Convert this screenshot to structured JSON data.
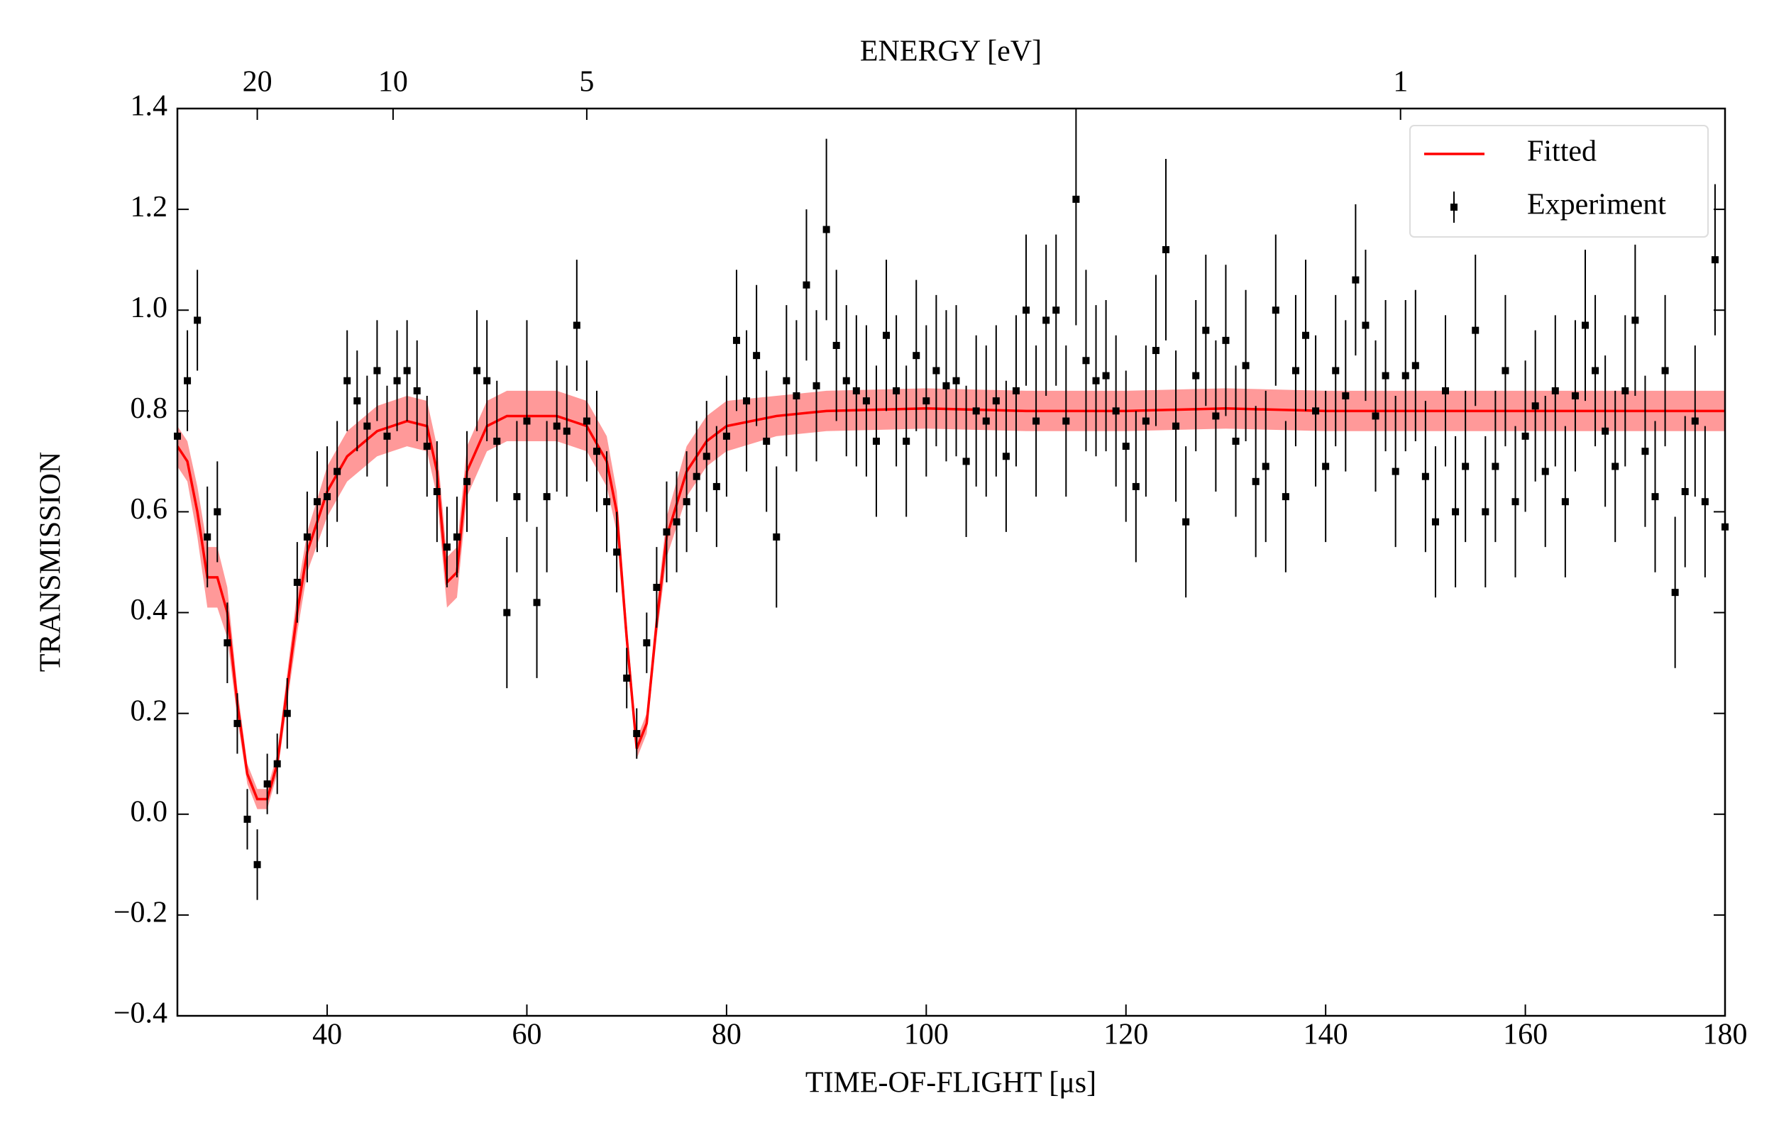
{
  "chart_data": {
    "type": "line",
    "xlabel": "TIME-OF-FLIGHT [μs]",
    "ylabel": "TRANSMISSION",
    "x2label": "ENERGY [eV]",
    "xlim": [
      25,
      180
    ],
    "ylim": [
      -0.4,
      1.4
    ],
    "xticks": [
      40,
      60,
      80,
      100,
      120,
      140,
      160,
      180
    ],
    "yticks": [
      {
        "value": -0.4,
        "label": "−0.4"
      },
      {
        "value": -0.2,
        "label": "−0.2"
      },
      {
        "value": 0,
        "label": "0.0"
      },
      0.2,
      0.4,
      0.6,
      0.8,
      {
        "value": 1,
        "label": "1.0"
      },
      1.2,
      1.4
    ],
    "x2ticks": [
      {
        "value": 33,
        "label": "20"
      },
      {
        "value": 46.6,
        "label": "10"
      },
      {
        "value": 66,
        "label": "5"
      },
      {
        "value": 147.5,
        "label": "1"
      }
    ],
    "legend": "upper right",
    "series": [
      {
        "name": "Fitted",
        "type": "line",
        "color": "#ff0000",
        "x": [
          25,
          26,
          27,
          28,
          29,
          30,
          31,
          32,
          33,
          34,
          35,
          36,
          37,
          38,
          40,
          42,
          45,
          48,
          50,
          51,
          52,
          53,
          54,
          56,
          58,
          60,
          63,
          66,
          68,
          69,
          70,
          71,
          72,
          73,
          74,
          76,
          78,
          80,
          85,
          90,
          100,
          110,
          120,
          130,
          140,
          150,
          160,
          170,
          180
        ],
        "values": [
          0.73,
          0.7,
          0.6,
          0.47,
          0.47,
          0.4,
          0.22,
          0.08,
          0.03,
          0.03,
          0.1,
          0.25,
          0.4,
          0.52,
          0.64,
          0.71,
          0.76,
          0.78,
          0.77,
          0.68,
          0.46,
          0.48,
          0.68,
          0.77,
          0.79,
          0.79,
          0.79,
          0.77,
          0.7,
          0.6,
          0.35,
          0.13,
          0.18,
          0.38,
          0.55,
          0.68,
          0.74,
          0.77,
          0.79,
          0.8,
          0.805,
          0.8,
          0.8,
          0.805,
          0.8,
          0.8,
          0.8,
          0.8,
          0.8
        ],
        "errors": [
          0.04,
          0.04,
          0.05,
          0.06,
          0.06,
          0.05,
          0.03,
          0.02,
          0.02,
          0.02,
          0.02,
          0.03,
          0.04,
          0.04,
          0.05,
          0.05,
          0.05,
          0.05,
          0.05,
          0.05,
          0.05,
          0.05,
          0.05,
          0.05,
          0.05,
          0.05,
          0.05,
          0.05,
          0.05,
          0.04,
          0.03,
          0.02,
          0.02,
          0.03,
          0.04,
          0.05,
          0.05,
          0.05,
          0.04,
          0.04,
          0.04,
          0.04,
          0.04,
          0.04,
          0.04,
          0.04,
          0.04,
          0.04,
          0.04
        ]
      },
      {
        "name": "Experiment",
        "type": "scatter",
        "color": "#000000",
        "x": [
          25,
          26,
          27,
          28,
          29,
          30,
          31,
          32,
          33,
          34,
          35,
          36,
          37,
          38,
          39,
          40,
          41,
          42,
          43,
          44,
          45,
          46,
          47,
          48,
          49,
          50,
          51,
          52,
          53,
          54,
          55,
          56,
          57,
          58,
          59,
          60,
          61,
          62,
          63,
          64,
          65,
          66,
          67,
          68,
          69,
          70,
          71,
          72,
          73,
          74,
          75,
          76,
          77,
          78,
          79,
          80,
          81,
          82,
          83,
          84,
          85,
          86,
          87,
          88,
          89,
          90,
          91,
          92,
          93,
          94,
          95,
          96,
          97,
          98,
          99,
          100,
          101,
          102,
          103,
          104,
          105,
          106,
          107,
          108,
          109,
          110,
          111,
          112,
          113,
          114,
          115,
          116,
          117,
          118,
          119,
          120,
          121,
          122,
          123,
          124,
          125,
          126,
          127,
          128,
          129,
          130,
          131,
          132,
          133,
          134,
          135,
          136,
          137,
          138,
          139,
          140,
          141,
          142,
          143,
          144,
          145,
          146,
          147,
          148,
          149,
          150,
          151,
          152,
          153,
          154,
          155,
          156,
          157,
          158,
          159,
          160,
          161,
          162,
          163,
          164,
          165,
          166,
          167,
          168,
          169,
          170,
          171,
          172,
          173,
          174,
          175,
          176,
          177,
          178,
          179,
          180
        ],
        "values": [
          0.75,
          0.86,
          0.98,
          0.55,
          0.6,
          0.34,
          0.18,
          -0.01,
          -0.1,
          0.06,
          0.1,
          0.2,
          0.46,
          0.55,
          0.62,
          0.63,
          0.68,
          0.86,
          0.82,
          0.77,
          0.88,
          0.75,
          0.86,
          0.88,
          0.84,
          0.73,
          0.64,
          0.53,
          0.55,
          0.66,
          0.88,
          0.86,
          0.74,
          0.4,
          0.63,
          0.78,
          0.42,
          0.63,
          0.77,
          0.76,
          0.97,
          0.78,
          0.72,
          0.62,
          0.52,
          0.27,
          0.16,
          0.34,
          0.45,
          0.56,
          0.58,
          0.62,
          0.67,
          0.71,
          0.65,
          0.75,
          0.94,
          0.82,
          0.91,
          0.74,
          0.55,
          0.86,
          0.83,
          1.05,
          0.85,
          1.16,
          0.93,
          0.86,
          0.84,
          0.82,
          0.74,
          0.95,
          0.84,
          0.74,
          0.91,
          0.82,
          0.88,
          0.85,
          0.86,
          0.7,
          0.8,
          0.78,
          0.82,
          0.71,
          0.84,
          1.0,
          0.78,
          0.98,
          1.0,
          0.78,
          1.22,
          0.9,
          0.86,
          0.87,
          0.8,
          0.73,
          0.65,
          0.78,
          0.92,
          1.12,
          0.77,
          0.58,
          0.87,
          0.96,
          0.79,
          0.94,
          0.74,
          0.89,
          0.66,
          0.69,
          1.0,
          0.63,
          0.88,
          0.95,
          0.8,
          0.69,
          0.88,
          0.83,
          1.06,
          0.97,
          0.79,
          0.87,
          0.68,
          0.87,
          0.89,
          0.67,
          0.58,
          0.84,
          0.6,
          0.69,
          0.96,
          0.6,
          0.69,
          0.88,
          0.62,
          0.75,
          0.81,
          0.68,
          0.84,
          0.62,
          0.83,
          0.97,
          0.88,
          0.76,
          0.69,
          0.84,
          0.98,
          0.72,
          0.63,
          0.88,
          0.44,
          0.64,
          0.78,
          0.62,
          1.1,
          0.57
        ],
        "errors": [
          0.1,
          0.1,
          0.1,
          0.1,
          0.1,
          0.08,
          0.06,
          0.06,
          0.07,
          0.06,
          0.06,
          0.07,
          0.08,
          0.09,
          0.1,
          0.1,
          0.1,
          0.1,
          0.1,
          0.1,
          0.1,
          0.1,
          0.1,
          0.1,
          0.1,
          0.1,
          0.1,
          0.08,
          0.08,
          0.1,
          0.12,
          0.12,
          0.12,
          0.15,
          0.15,
          0.2,
          0.15,
          0.15,
          0.13,
          0.13,
          0.13,
          0.12,
          0.12,
          0.1,
          0.08,
          0.06,
          0.05,
          0.06,
          0.08,
          0.1,
          0.1,
          0.1,
          0.11,
          0.11,
          0.12,
          0.12,
          0.14,
          0.14,
          0.14,
          0.14,
          0.14,
          0.15,
          0.15,
          0.15,
          0.15,
          0.18,
          0.15,
          0.15,
          0.15,
          0.15,
          0.15,
          0.15,
          0.15,
          0.15,
          0.15,
          0.15,
          0.15,
          0.15,
          0.15,
          0.15,
          0.15,
          0.15,
          0.15,
          0.15,
          0.15,
          0.15,
          0.15,
          0.15,
          0.15,
          0.15,
          0.25,
          0.18,
          0.15,
          0.15,
          0.15,
          0.15,
          0.15,
          0.15,
          0.15,
          0.18,
          0.15,
          0.15,
          0.15,
          0.15,
          0.15,
          0.15,
          0.15,
          0.15,
          0.15,
          0.15,
          0.15,
          0.15,
          0.15,
          0.15,
          0.15,
          0.15,
          0.15,
          0.15,
          0.15,
          0.15,
          0.15,
          0.15,
          0.15,
          0.15,
          0.15,
          0.15,
          0.15,
          0.15,
          0.15,
          0.15,
          0.15,
          0.15,
          0.15,
          0.15,
          0.15,
          0.15,
          0.15,
          0.15,
          0.15,
          0.15,
          0.15,
          0.15,
          0.15,
          0.15,
          0.15,
          0.15,
          0.15,
          0.15,
          0.15,
          0.15,
          0.15,
          0.15,
          0.15,
          0.15,
          0.15,
          0.2
        ]
      }
    ]
  }
}
